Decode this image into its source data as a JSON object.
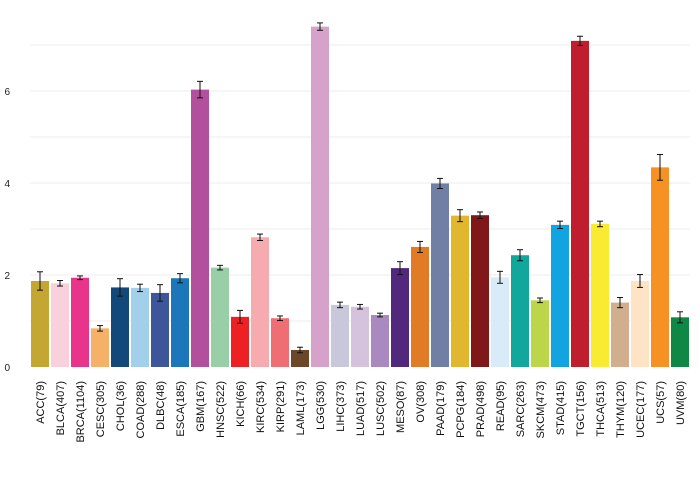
{
  "chart_data": {
    "type": "bar",
    "title": "",
    "xlabel": "",
    "ylabel": "",
    "ylim": [
      0,
      7.8
    ],
    "yticks": [
      0,
      2,
      4,
      6
    ],
    "grid": true,
    "categories": [
      "ACC(79)",
      "BLCA(407)",
      "BRCA(1104)",
      "CESC(305)",
      "CHOL(36)",
      "COAD(288)",
      "DLBC(48)",
      "ESCA(185)",
      "GBM(167)",
      "HNSC(522)",
      "KICH(66)",
      "KIRC(534)",
      "KIRP(291)",
      "LAML(173)",
      "LGG(530)",
      "LIHC(373)",
      "LUAD(517)",
      "LUSC(502)",
      "MESO(87)",
      "OV(308)",
      "PAAD(179)",
      "PCPG(184)",
      "PRAD(498)",
      "READ(95)",
      "SARC(263)",
      "SKCM(473)",
      "STAD(415)",
      "TGCT(156)",
      "THCA(513)",
      "THYM(120)",
      "UCEC(177)",
      "UCS(57)",
      "UVM(80)"
    ],
    "values": [
      1.87,
      1.82,
      1.94,
      0.84,
      1.73,
      1.72,
      1.61,
      1.93,
      6.03,
      2.16,
      1.09,
      2.82,
      1.06,
      0.37,
      7.4,
      1.35,
      1.31,
      1.13,
      2.15,
      2.61,
      3.99,
      3.29,
      3.3,
      1.95,
      2.43,
      1.45,
      3.09,
      7.09,
      3.11,
      1.4,
      1.87,
      4.34,
      1.08
    ],
    "errors": [
      0.2,
      0.06,
      0.04,
      0.06,
      0.19,
      0.08,
      0.18,
      0.1,
      0.18,
      0.05,
      0.14,
      0.07,
      0.05,
      0.06,
      0.08,
      0.06,
      0.05,
      0.04,
      0.14,
      0.12,
      0.11,
      0.13,
      0.07,
      0.13,
      0.12,
      0.05,
      0.08,
      0.1,
      0.06,
      0.11,
      0.14,
      0.28,
      0.12
    ],
    "colors": [
      "#c4a732",
      "#f9d1dc",
      "#e8348b",
      "#f6b169",
      "#13487a",
      "#a2d0ea",
      "#3d5699",
      "#1b76ba",
      "#b2509e",
      "#98cfa7",
      "#ed2024",
      "#f6acaf",
      "#ef6e74",
      "#6b4629",
      "#d6a2ca",
      "#c9c8da",
      "#d5c3de",
      "#a989c0",
      "#52287e",
      "#e27b26",
      "#707fa3",
      "#e0b72e",
      "#801819",
      "#daebf8",
      "#12a79c",
      "#bcd649",
      "#12a4e0",
      "#be1e2d",
      "#f8eb32",
      "#d0ae8e",
      "#fee4c4",
      "#f59223",
      "#108845"
    ]
  }
}
